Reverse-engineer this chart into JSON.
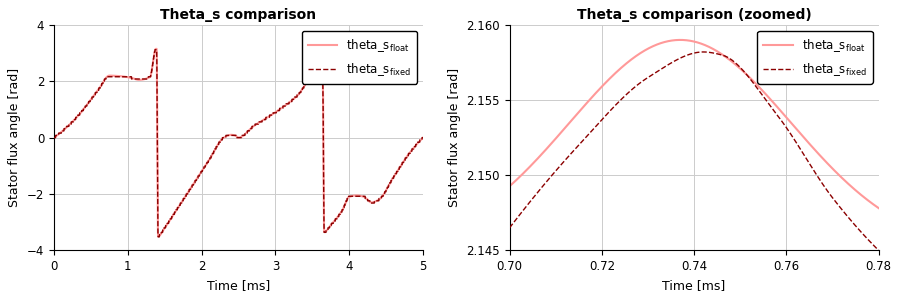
{
  "title_left": "Theta_s comparison",
  "title_right": "Theta_s comparison (zoomed)",
  "xlabel": "Time [ms]",
  "ylabel": "Stator flux angle [rad]",
  "color_float": "#FF9999",
  "color_fixed": "#8B0000",
  "xlim_left": [
    0,
    5
  ],
  "ylim_left": [
    -4,
    4
  ],
  "xticks_left": [
    0,
    1,
    2,
    3,
    4,
    5
  ],
  "yticks_left": [
    -4,
    -2,
    0,
    2,
    4
  ],
  "xlim_right": [
    0.7,
    0.78
  ],
  "ylim_right": [
    2.145,
    2.16
  ],
  "xticks_right": [
    0.7,
    0.72,
    0.74,
    0.76,
    0.78
  ],
  "yticks_right": [
    2.145,
    2.15,
    2.155,
    2.16
  ]
}
